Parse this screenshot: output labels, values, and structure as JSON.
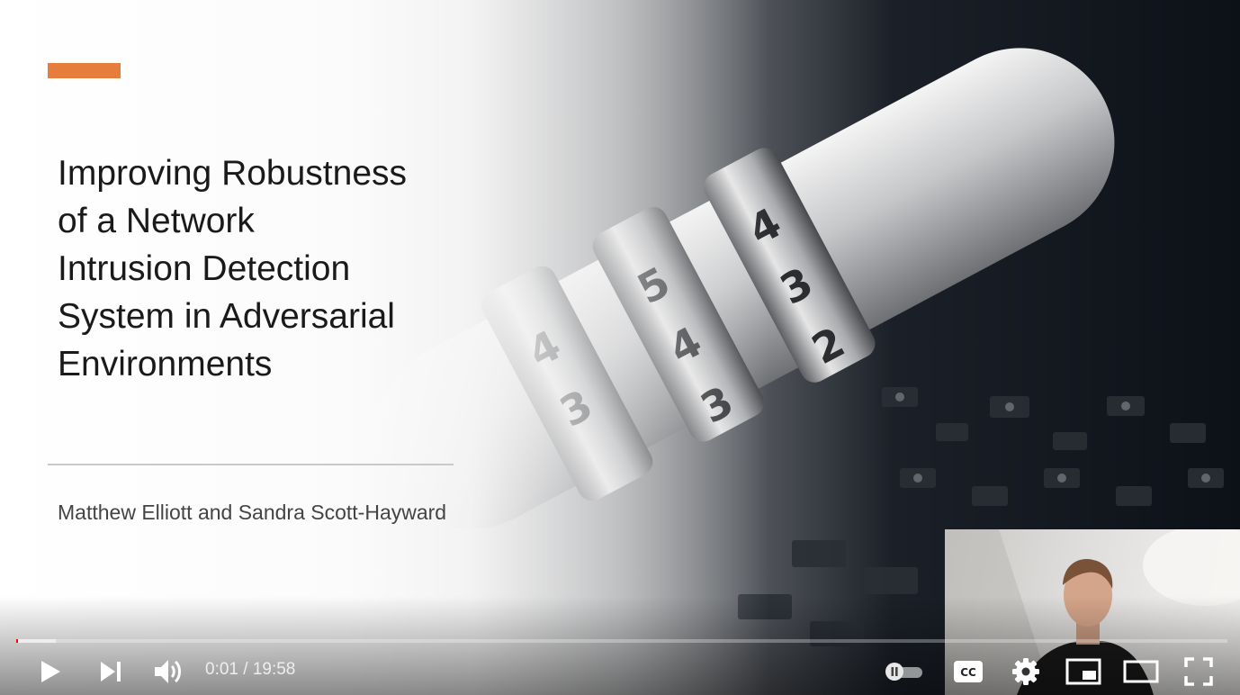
{
  "slide": {
    "title_lines": [
      "Improving Robustness",
      "of a Network",
      "Intrusion Detection",
      "System in Adversarial",
      "Environments"
    ],
    "authors": "Matthew Elliott and Sandra Scott-Hayward"
  },
  "player": {
    "time_current": "0:01",
    "time_separator": " / ",
    "time_total": "19:58",
    "progress_played": 0.0008,
    "progress_loaded": 0.033,
    "colors": {
      "progress": "#ff0000",
      "accent": "#e77d3c"
    },
    "controls": [
      "play-icon",
      "next-icon",
      "volume-icon",
      "autoplay-toggle-icon",
      "cc-icon",
      "gear-icon",
      "miniplayer-icon",
      "theater-icon",
      "fullscreen-icon"
    ]
  }
}
